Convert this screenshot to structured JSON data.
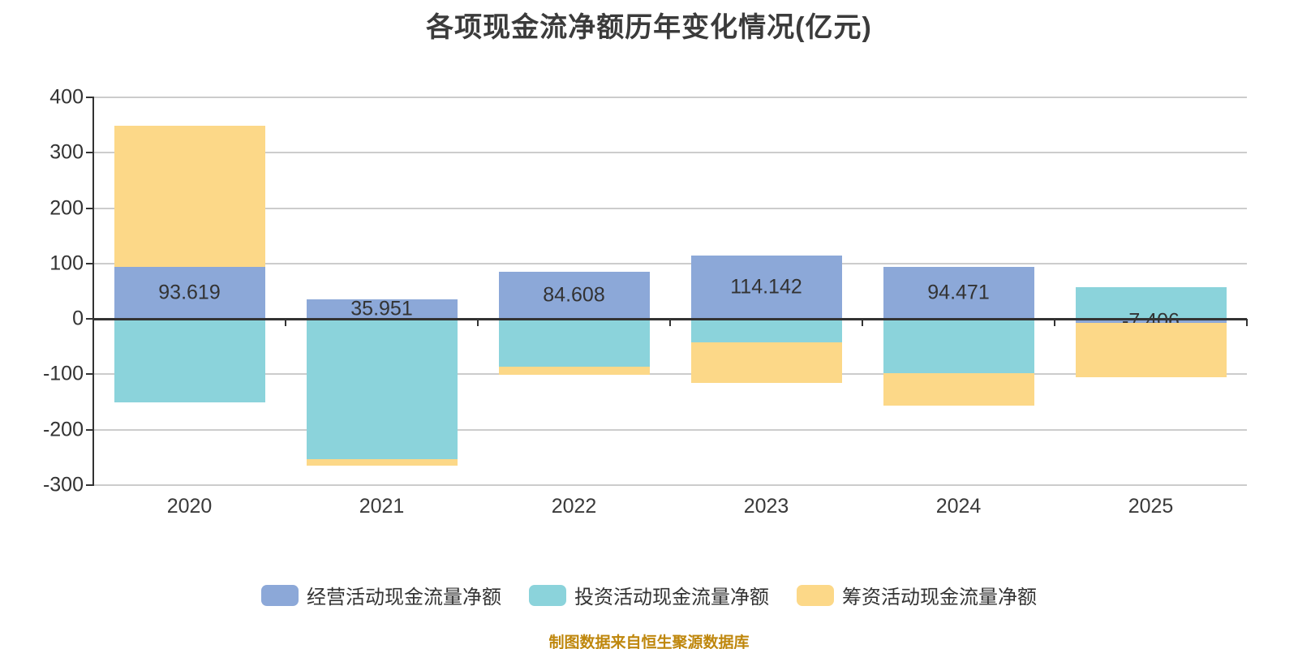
{
  "title": "各项现金流净额历年变化情况(亿元)",
  "source_note": "制图数据来自恒生聚源数据库",
  "colors": {
    "operating": "#8CA8D8",
    "investing": "#8BD3DB",
    "financing": "#FCD888",
    "title_text": "#3B3B3B",
    "axis_text": "#333333",
    "grid_line": "#CCCCCC",
    "axis_line": "#333333",
    "label_text": "#333333",
    "source_text": "#BF870D",
    "background": "#FFFFFF"
  },
  "chart_data": {
    "type": "bar",
    "stacked": true,
    "categories": [
      "2020",
      "2021",
      "2022",
      "2023",
      "2024",
      "2025"
    ],
    "series": [
      {
        "name": "经营活动现金流量净额",
        "color": "#8CA8D8",
        "values": [
          93.619,
          35.951,
          84.608,
          114.142,
          94.471,
          -7.406
        ],
        "labels": [
          "93.619",
          "35.951",
          "84.608",
          "114.142",
          "94.471",
          "-7.406"
        ],
        "show_labels": true
      },
      {
        "name": "投资活动现金流量净额",
        "color": "#8BD3DB",
        "values": [
          -150.9,
          -252.9,
          -85.5,
          -41.6,
          -97.7,
          58.0
        ],
        "show_labels": false
      },
      {
        "name": "筹资活动现金流量净额",
        "color": "#FCD888",
        "values": [
          255.4,
          -12.1,
          -15.1,
          -73.6,
          -58.5,
          -97.6
        ],
        "show_labels": false
      }
    ],
    "ylim": [
      -300,
      400
    ],
    "ytick_step": 100,
    "yticks": [
      "400",
      "300",
      "200",
      "100",
      "0",
      "-100",
      "-200",
      "-300"
    ],
    "grid": true,
    "legend_position": "bottom",
    "title": "各项现金流净额历年变化情况(亿元)",
    "xlabel": "",
    "ylabel": ""
  }
}
